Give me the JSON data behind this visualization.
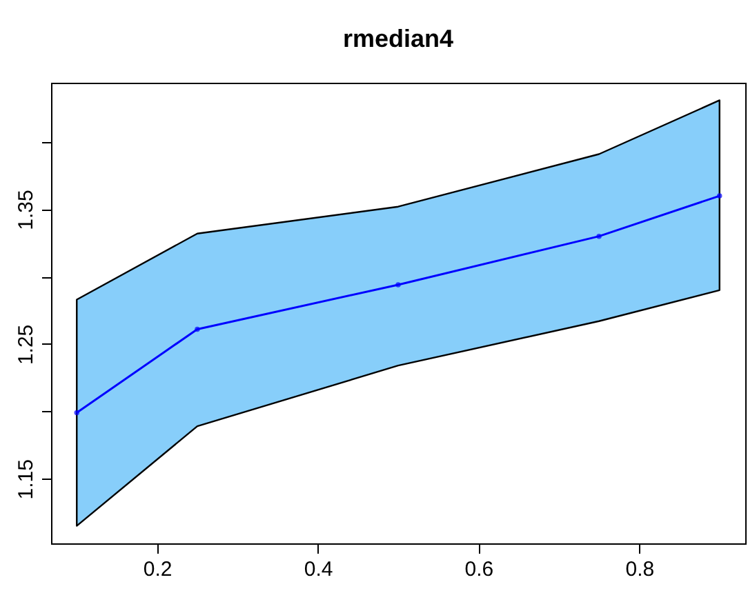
{
  "chart_data": {
    "type": "line",
    "title": "rmedian4",
    "x": [
      0.1,
      0.25,
      0.5,
      0.75,
      0.9
    ],
    "series": [
      {
        "color": "#0000ff",
        "values": [
          1.199,
          1.261,
          1.294,
          1.33,
          1.36
        ],
        "lower": [
          1.115,
          1.189,
          1.234,
          1.267,
          1.29
        ],
        "upper": [
          1.283,
          1.332,
          1.352,
          1.391,
          1.431
        ]
      }
    ],
    "xlim": [
      0.068,
      0.932
    ],
    "xticks": [
      0.2,
      0.4,
      0.6,
      0.8
    ],
    "ylim": [
      1.102,
      1.444
    ],
    "yticks": [
      1.15,
      {
        "value": 1.2,
        "label": null
      },
      1.25,
      {
        "value": 1.3,
        "label": null
      },
      1.35,
      {
        "value": 1.4,
        "label": null
      }
    ],
    "marker": "circle",
    "line_style": "solid",
    "grid": false
  }
}
